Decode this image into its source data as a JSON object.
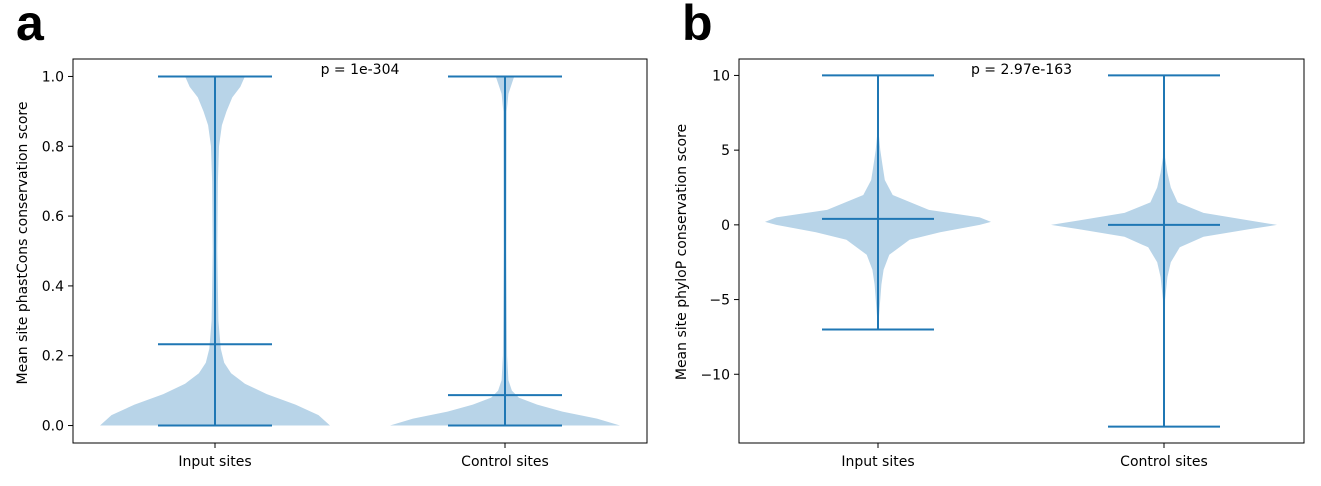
{
  "colors": {
    "violin_fill": "#b8d4e8",
    "line": "#1f77b4",
    "axes": "#000000"
  },
  "chart_data": [
    {
      "panel": "a",
      "type": "violin",
      "ylabel": "Mean site phastCons conservation score",
      "xlabel": "",
      "categories": [
        "Input sites",
        "Control sites"
      ],
      "ylim": [
        -0.05,
        1.05
      ],
      "yticks": [
        0.0,
        0.2,
        0.4,
        0.6,
        0.8,
        1.0
      ],
      "ytick_labels": [
        "0.0",
        "0.2",
        "0.4",
        "0.6",
        "0.8",
        "1.0"
      ],
      "annotation": "p = 1e-304",
      "grid": false,
      "series": [
        {
          "category": "Input sites",
          "min": 0.0,
          "max": 1.0,
          "median": 0.233,
          "density": [
            [
              0.0,
              1.0
            ],
            [
              0.03,
              0.9
            ],
            [
              0.06,
              0.7
            ],
            [
              0.09,
              0.45
            ],
            [
              0.12,
              0.26
            ],
            [
              0.15,
              0.14
            ],
            [
              0.18,
              0.08
            ],
            [
              0.22,
              0.05
            ],
            [
              0.3,
              0.03
            ],
            [
              0.5,
              0.02
            ],
            [
              0.7,
              0.025
            ],
            [
              0.8,
              0.035
            ],
            [
              0.86,
              0.06
            ],
            [
              0.9,
              0.1
            ],
            [
              0.94,
              0.15
            ],
            [
              0.97,
              0.22
            ],
            [
              1.0,
              0.26
            ]
          ]
        },
        {
          "category": "Control sites",
          "min": 0.0,
          "max": 1.0,
          "median": 0.087,
          "density": [
            [
              0.0,
              1.0
            ],
            [
              0.02,
              0.8
            ],
            [
              0.04,
              0.5
            ],
            [
              0.06,
              0.28
            ],
            [
              0.08,
              0.12
            ],
            [
              0.1,
              0.06
            ],
            [
              0.13,
              0.03
            ],
            [
              0.2,
              0.018
            ],
            [
              0.5,
              0.012
            ],
            [
              0.9,
              0.015
            ],
            [
              0.95,
              0.03
            ],
            [
              0.98,
              0.06
            ],
            [
              1.0,
              0.08
            ]
          ]
        }
      ]
    },
    {
      "panel": "b",
      "type": "violin",
      "ylabel": "Mean site phyloP conservation score",
      "xlabel": "",
      "categories": [
        "Input sites",
        "Control sites"
      ],
      "ylim": [
        -14.6,
        11.1
      ],
      "yticks": [
        -10,
        -5,
        0,
        5,
        10
      ],
      "ytick_labels": [
        "−10",
        "−5",
        "0",
        "5",
        "10"
      ],
      "annotation": "p = 2.97e-163",
      "grid": false,
      "series": [
        {
          "category": "Input sites",
          "min": -7.0,
          "max": 10.0,
          "median": 0.4,
          "density": [
            [
              -7.0,
              0.0
            ],
            [
              -4.0,
              0.03
            ],
            [
              -3.0,
              0.05
            ],
            [
              -2.0,
              0.1
            ],
            [
              -1.0,
              0.28
            ],
            [
              -0.5,
              0.55
            ],
            [
              0.0,
              0.9
            ],
            [
              0.2,
              1.0
            ],
            [
              0.5,
              0.9
            ],
            [
              1.0,
              0.45
            ],
            [
              2.0,
              0.13
            ],
            [
              3.0,
              0.06
            ],
            [
              4.0,
              0.04
            ],
            [
              5.0,
              0.02
            ],
            [
              6.0,
              0.008
            ],
            [
              10.0,
              0.0
            ]
          ]
        },
        {
          "category": "Control sites",
          "min": -13.5,
          "max": 10.0,
          "median": 0.0,
          "density": [
            [
              -13.5,
              0.0
            ],
            [
              -5.0,
              0.01
            ],
            [
              -3.5,
              0.03
            ],
            [
              -2.5,
              0.06
            ],
            [
              -1.5,
              0.14
            ],
            [
              -0.8,
              0.35
            ],
            [
              -0.3,
              0.75
            ],
            [
              0.0,
              1.0
            ],
            [
              0.3,
              0.75
            ],
            [
              0.8,
              0.35
            ],
            [
              1.5,
              0.12
            ],
            [
              2.5,
              0.06
            ],
            [
              3.5,
              0.03
            ],
            [
              4.5,
              0.01
            ],
            [
              10.0,
              0.0
            ]
          ]
        }
      ]
    }
  ]
}
